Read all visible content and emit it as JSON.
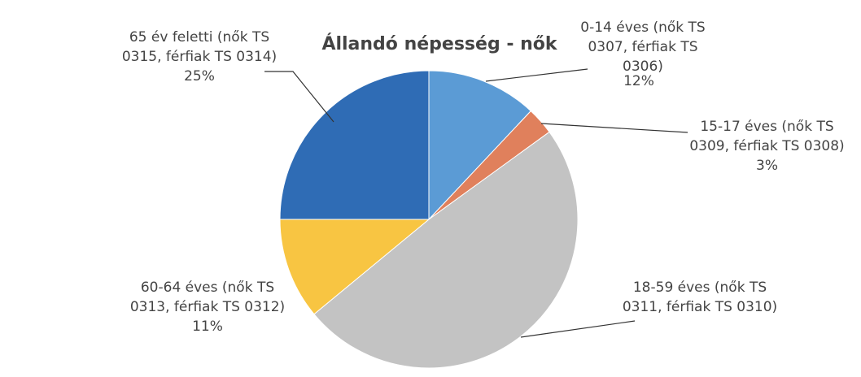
{
  "chart_data": {
    "type": "pie",
    "title": "Állandó népesség - nők",
    "categories": [
      "0-14 éves (nők TS 0307, férfiak TS 0306)",
      "15-17 éves (nők TS 0309, férfiak TS 0308)",
      "18-59 éves (nők TS 0311, férfiak TS 0310)",
      "60-64 éves (nők TS 0313, férfiak TS 0312)",
      "65 év feletti (nők TS 0315, férfiak TS 0314)"
    ],
    "values": [
      12,
      3,
      49,
      11,
      25
    ],
    "value_labels": [
      "12%",
      "3%",
      null,
      "11%",
      "25%"
    ],
    "colors": [
      "#5b9bd5",
      "#e0805c",
      "#c3c3c3",
      "#f8c542",
      "#2f6cb5"
    ]
  }
}
